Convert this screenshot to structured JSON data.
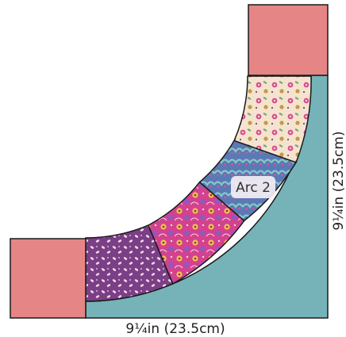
{
  "diagram": {
    "arc_label": "Arc 2",
    "width_label": "9¼in (23.5cm)",
    "height_label": "9¼in (23.5cm)",
    "colors": {
      "background_panel": "#76b3b9",
      "corner_square": "#e58586",
      "outline": "#1a1a1a",
      "fabric_purple": "#7a3f86",
      "fabric_magenta": "#d2428e",
      "fabric_blue": "#5b79b5",
      "fabric_cream": "#f4e3cf",
      "label_bg": "#f3eef4"
    },
    "arc_segments": [
      {
        "name": "purple-leaf-fabric"
      },
      {
        "name": "pink-floral-fabric"
      },
      {
        "name": "blue-scallop-fabric"
      },
      {
        "name": "cream-floral-fabric"
      }
    ]
  }
}
